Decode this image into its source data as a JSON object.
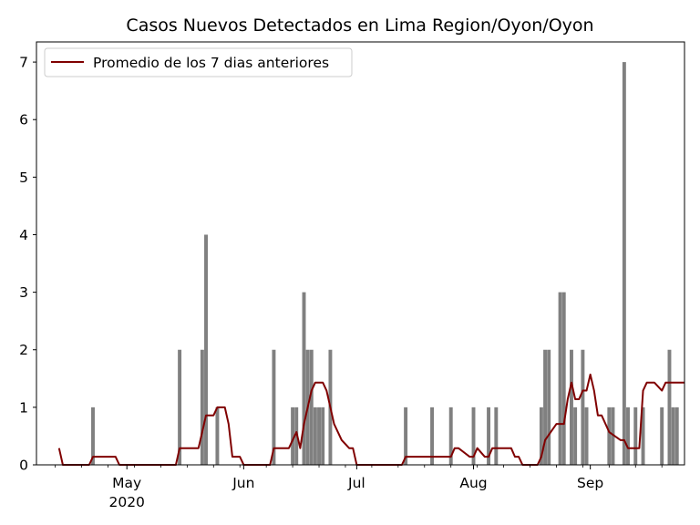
{
  "chart_data": {
    "type": "bar",
    "title": "Casos Nuevos Detectados en Lima Region/Oyon/Oyon",
    "xlabel": "",
    "ylabel": "",
    "x_axis": {
      "type": "date",
      "range": [
        "2020-04-07",
        "2020-09-26"
      ],
      "ticks": [
        {
          "date": "2020-05-01",
          "label": "May",
          "sublabel": "2020"
        },
        {
          "date": "2020-06-01",
          "label": "Jun",
          "sublabel": ""
        },
        {
          "date": "2020-07-01",
          "label": "Jul",
          "sublabel": ""
        },
        {
          "date": "2020-08-01",
          "label": "Aug",
          "sublabel": ""
        },
        {
          "date": "2020-09-01",
          "label": "Sep",
          "sublabel": ""
        }
      ]
    },
    "ylim": [
      0,
      7.35
    ],
    "yticks": [
      0,
      1,
      2,
      3,
      4,
      5,
      6,
      7
    ],
    "grid": false,
    "legend_position": "top-left",
    "colors": {
      "bars": "#808080",
      "average_line": "#800000",
      "axes": "#000000"
    },
    "series": [
      {
        "name": "",
        "kind": "bar",
        "x": [
          "2020-04-22",
          "2020-05-15",
          "2020-05-21",
          "2020-05-22",
          "2020-05-25",
          "2020-06-09",
          "2020-06-14",
          "2020-06-15",
          "2020-06-17",
          "2020-06-18",
          "2020-06-19",
          "2020-06-20",
          "2020-06-21",
          "2020-06-22",
          "2020-06-24",
          "2020-07-14",
          "2020-07-21",
          "2020-07-26",
          "2020-08-01",
          "2020-08-05",
          "2020-08-07",
          "2020-08-19",
          "2020-08-20",
          "2020-08-21",
          "2020-08-24",
          "2020-08-25",
          "2020-08-27",
          "2020-08-28",
          "2020-08-30",
          "2020-08-31",
          "2020-09-06",
          "2020-09-07",
          "2020-09-10",
          "2020-09-11",
          "2020-09-13",
          "2020-09-15",
          "2020-09-20",
          "2020-09-22",
          "2020-09-23",
          "2020-09-24"
        ],
        "y": [
          1,
          2,
          2,
          4,
          1,
          2,
          1,
          1,
          3,
          2,
          2,
          1,
          1,
          1,
          2,
          1,
          1,
          1,
          1,
          1,
          1,
          1,
          2,
          2,
          3,
          3,
          2,
          1,
          2,
          1,
          1,
          1,
          7,
          1,
          1,
          1,
          1,
          2,
          1,
          1
        ]
      },
      {
        "name": "Promedio de los 7 dias anteriores",
        "kind": "line",
        "x": [
          "2020-04-13",
          "2020-04-14",
          "2020-04-21",
          "2020-04-22",
          "2020-04-28",
          "2020-04-29",
          "2020-05-14",
          "2020-05-15",
          "2020-05-20",
          "2020-05-21",
          "2020-05-22",
          "2020-05-24",
          "2020-05-25",
          "2020-05-27",
          "2020-05-28",
          "2020-05-29",
          "2020-05-31",
          "2020-06-01",
          "2020-06-08",
          "2020-06-09",
          "2020-06-13",
          "2020-06-14",
          "2020-06-15",
          "2020-06-16",
          "2020-06-17",
          "2020-06-18",
          "2020-06-19",
          "2020-06-20",
          "2020-06-22",
          "2020-06-23",
          "2020-06-25",
          "2020-06-27",
          "2020-06-29",
          "2020-06-30",
          "2020-07-01",
          "2020-07-13",
          "2020-07-14",
          "2020-07-25",
          "2020-07-26",
          "2020-07-27",
          "2020-07-28",
          "2020-07-31",
          "2020-08-01",
          "2020-08-02",
          "2020-08-04",
          "2020-08-05",
          "2020-08-06",
          "2020-08-07",
          "2020-08-11",
          "2020-08-12",
          "2020-08-13",
          "2020-08-14",
          "2020-08-17",
          "2020-08-18",
          "2020-08-19",
          "2020-08-20",
          "2020-08-23",
          "2020-08-25",
          "2020-08-26",
          "2020-08-27",
          "2020-08-28",
          "2020-08-29",
          "2020-08-30",
          "2020-08-31",
          "2020-09-01",
          "2020-09-02",
          "2020-09-03",
          "2020-09-04",
          "2020-09-06",
          "2020-09-09",
          "2020-09-10",
          "2020-09-11",
          "2020-09-12",
          "2020-09-14",
          "2020-09-15",
          "2020-09-16",
          "2020-09-17",
          "2020-09-18",
          "2020-09-20",
          "2020-09-21",
          "2020-09-26"
        ],
        "y": [
          0.29,
          0,
          0,
          0.14,
          0.14,
          0,
          0,
          0.29,
          0.29,
          0.57,
          0.86,
          0.86,
          1,
          1,
          0.71,
          0.14,
          0.14,
          0,
          0,
          0.29,
          0.29,
          0.43,
          0.57,
          0.29,
          0.71,
          1,
          1.29,
          1.43,
          1.43,
          1.29,
          0.71,
          0.43,
          0.29,
          0.29,
          0,
          0,
          0.14,
          0.14,
          0.14,
          0.29,
          0.29,
          0.14,
          0.14,
          0.29,
          0.14,
          0.14,
          0.29,
          0.29,
          0.29,
          0.14,
          0.14,
          0,
          0,
          0,
          0.14,
          0.43,
          0.71,
          0.71,
          1.14,
          1.43,
          1.14,
          1.14,
          1.29,
          1.29,
          1.57,
          1.29,
          0.86,
          0.86,
          0.57,
          0.43,
          0.43,
          0.29,
          0.29,
          0.29,
          1.29,
          1.43,
          1.43,
          1.43,
          1.29,
          1.43,
          1.43
        ]
      }
    ]
  }
}
